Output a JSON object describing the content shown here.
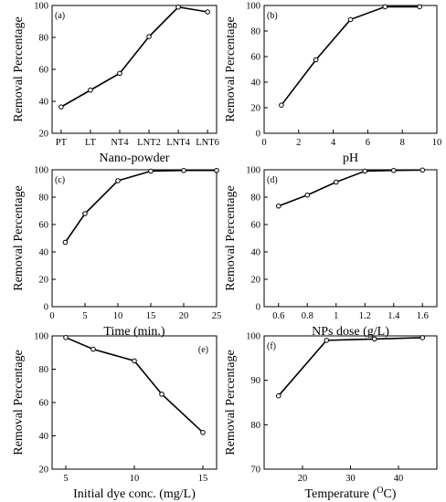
{
  "chart_data": [
    {
      "type": "line",
      "panel_label": "(a)",
      "xlabel": "Nano-powder",
      "ylabel": "Removal Percentage",
      "categories": [
        "PT",
        "LT",
        "NT4",
        "LNT2",
        "LNT4",
        "LNT6"
      ],
      "series": [
        {
          "values": [
            36.5,
            47,
            57.5,
            80.5,
            99,
            96
          ]
        }
      ],
      "ylim": [
        20,
        100
      ],
      "yticks": [
        20,
        40,
        60,
        80,
        100
      ]
    },
    {
      "type": "line",
      "panel_label": "(b)",
      "xlabel": "pH",
      "ylabel": "Removal Percentage",
      "x": [
        1,
        3,
        5,
        7,
        9
      ],
      "series": [
        {
          "values": [
            22,
            57.5,
            89,
            99,
            99
          ]
        }
      ],
      "xlim": [
        0,
        10
      ],
      "xticks": [
        0,
        2,
        4,
        6,
        8,
        10
      ],
      "ylim": [
        0,
        100
      ],
      "yticks": [
        0,
        20,
        40,
        60,
        80,
        100
      ]
    },
    {
      "type": "line",
      "panel_label": "(c)",
      "xlabel": "Time (min.)",
      "ylabel": "Removal Percentage",
      "x": [
        2,
        5,
        10,
        15,
        20,
        25
      ],
      "series": [
        {
          "values": [
            47,
            68,
            92,
            99,
            99.5,
            99.5
          ]
        }
      ],
      "xlim": [
        0,
        25
      ],
      "xticks": [
        0,
        5,
        10,
        15,
        20,
        25
      ],
      "ylim": [
        0,
        100
      ],
      "yticks": [
        0,
        20,
        40,
        60,
        80,
        100
      ]
    },
    {
      "type": "line",
      "panel_label": "(d)",
      "xlabel": "NPs dose (g/L)",
      "ylabel": "Removal Percentage",
      "x": [
        0.6,
        0.8,
        1.0,
        1.2,
        1.4,
        1.6
      ],
      "series": [
        {
          "values": [
            73.5,
            81.5,
            91,
            99,
            99.5,
            99.8
          ]
        }
      ],
      "xlim": [
        0.5,
        1.7
      ],
      "xticks": [
        0.6,
        0.8,
        1.0,
        1.2,
        1.4,
        1.6
      ],
      "ylim": [
        0,
        100
      ],
      "yticks": [
        0,
        20,
        40,
        60,
        80,
        100
      ]
    },
    {
      "type": "line",
      "panel_label": "(e)",
      "xlabel": "Initial dye conc. (mg/L)",
      "ylabel": "Removal Percentage",
      "x": [
        5,
        7,
        10,
        12,
        15
      ],
      "series": [
        {
          "values": [
            99,
            92,
            85,
            65,
            42
          ]
        }
      ],
      "xlim": [
        4,
        16
      ],
      "xticks": [
        5,
        10,
        15
      ],
      "ylim": [
        20,
        100
      ],
      "yticks": [
        20,
        40,
        60,
        80,
        100
      ]
    },
    {
      "type": "line",
      "panel_label": "(f)",
      "xlabel": "Temperature (",
      "xlabel_sup": "O",
      "xlabel_tail": "C)",
      "ylabel": "Removal Percentage",
      "x": [
        15,
        25,
        35,
        45
      ],
      "series": [
        {
          "values": [
            86.5,
            99,
            99.3,
            99.6
          ]
        }
      ],
      "xlim": [
        12,
        48
      ],
      "xticks": [
        20,
        30,
        40
      ],
      "ylim": [
        70,
        100
      ],
      "yticks": [
        70,
        80,
        90,
        100
      ]
    }
  ]
}
